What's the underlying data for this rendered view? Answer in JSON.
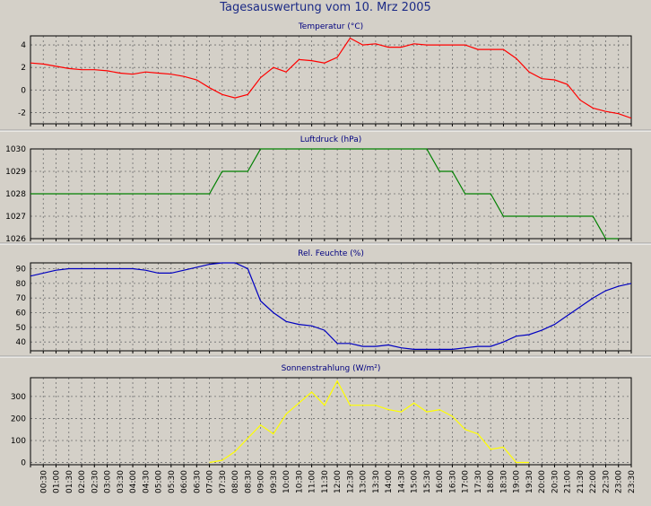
{
  "page": {
    "title": "Tagesauswertung vom 10. Mrz 2005"
  },
  "x_labels": [
    "00:30",
    "01:00",
    "01:30",
    "02:00",
    "02:30",
    "03:00",
    "03:30",
    "04:00",
    "04:30",
    "05:00",
    "05:30",
    "06:00",
    "06:30",
    "07:00",
    "07:30",
    "08:00",
    "08:30",
    "09:00",
    "09:30",
    "10:00",
    "10:30",
    "11:00",
    "11:30",
    "12:00",
    "12:30",
    "13:00",
    "13:30",
    "14:00",
    "14:30",
    "15:00",
    "15:30",
    "16:00",
    "16:30",
    "17:00",
    "17:30",
    "18:00",
    "18:30",
    "19:00",
    "19:30",
    "20:00",
    "20:30",
    "21:00",
    "21:30",
    "22:00",
    "22:30",
    "23:00",
    "23:30"
  ],
  "chart_data": [
    {
      "type": "line",
      "title": "Temperatur (°C)",
      "color": "#ff0000",
      "xlim": [
        0,
        23.5
      ],
      "ylim": [
        -3,
        4.8
      ],
      "yticks": [
        -2,
        0,
        2,
        4
      ],
      "x": [
        0,
        0.5,
        1,
        1.5,
        2,
        2.5,
        3,
        3.5,
        4,
        4.5,
        5,
        5.5,
        6,
        6.5,
        7,
        7.5,
        8,
        8.5,
        9,
        9.5,
        10,
        10.5,
        11,
        11.5,
        12,
        12.5,
        13,
        13.5,
        14,
        14.5,
        15,
        15.5,
        16,
        16.5,
        17,
        17.5,
        18,
        18.5,
        19,
        19.5,
        20,
        20.5,
        21,
        21.5,
        22,
        22.5,
        23,
        23.5
      ],
      "values": [
        2.4,
        2.3,
        2.1,
        1.9,
        1.8,
        1.8,
        1.7,
        1.5,
        1.4,
        1.6,
        1.5,
        1.4,
        1.2,
        0.9,
        0.2,
        -0.4,
        -0.7,
        -0.4,
        1.1,
        2.0,
        1.6,
        2.7,
        2.6,
        2.4,
        2.9,
        4.6,
        4.0,
        4.1,
        3.8,
        3.8,
        4.1,
        4.0,
        4.0,
        4.0,
        4.0,
        3.6,
        3.6,
        3.6,
        2.8,
        1.6,
        1.0,
        0.9,
        0.5,
        -0.9,
        -1.6,
        -1.9,
        -2.1,
        -2.5
      ]
    },
    {
      "type": "line",
      "title": "Luftdruck (hPa)",
      "color": "#008000",
      "xlim": [
        0,
        23.5
      ],
      "ylim": [
        1026,
        1030
      ],
      "yticks": [
        1026,
        1027,
        1028,
        1029,
        1030
      ],
      "x": [
        0,
        7,
        7.5,
        8.5,
        9,
        15.5,
        16,
        16.5,
        17,
        17.5,
        18,
        18.5,
        19,
        19.5,
        20,
        20.5,
        21,
        21.5,
        22,
        22.5,
        23
      ],
      "values": [
        1028,
        1028,
        1029,
        1029,
        1030,
        1030,
        1029,
        1029,
        1028,
        1028,
        1028,
        1027,
        1027,
        1027,
        1027,
        1027,
        1027,
        1027,
        1027,
        1026,
        1026
      ]
    },
    {
      "type": "line",
      "title": "Rel. Feuchte (%)",
      "color": "#0000c0",
      "xlim": [
        0,
        23.5
      ],
      "ylim": [
        34,
        94
      ],
      "yticks": [
        40,
        50,
        60,
        70,
        80,
        90
      ],
      "x": [
        0,
        0.5,
        1,
        1.5,
        2,
        2.5,
        3,
        3.5,
        4,
        4.5,
        5,
        5.5,
        6,
        6.5,
        7,
        7.5,
        8,
        8.5,
        9,
        9.5,
        10,
        10.5,
        11,
        11.5,
        12,
        12.5,
        13,
        13.5,
        14,
        14.5,
        15,
        15.5,
        16,
        16.5,
        17,
        17.5,
        18,
        18.5,
        19,
        19.5,
        20,
        20.5,
        21,
        21.5,
        22,
        22.5,
        23,
        23.5
      ],
      "values": [
        85,
        87,
        89,
        90,
        90,
        90,
        90,
        90,
        90,
        89,
        87,
        87,
        89,
        91,
        93,
        94,
        94,
        90,
        68,
        60,
        54,
        52,
        51,
        48,
        39,
        39,
        37,
        37,
        38,
        36,
        35,
        35,
        35,
        35,
        36,
        37,
        37,
        40,
        44,
        45,
        48,
        52,
        58,
        64,
        70,
        75,
        78,
        80
      ]
    },
    {
      "type": "line",
      "title": "Sonnenstrahlung (W/m²)",
      "color": "#ffff00",
      "xlim": [
        0,
        23.5
      ],
      "ylim": [
        -10,
        385
      ],
      "yticks": [
        0,
        100,
        200,
        300
      ],
      "x": [
        7,
        7.5,
        8,
        8.5,
        9,
        9.5,
        10,
        10.5,
        11,
        11.5,
        12,
        12.5,
        13,
        13.5,
        14,
        14.5,
        15,
        15.5,
        16,
        16.5,
        17,
        17.5,
        18,
        18.5,
        19,
        19.5
      ],
      "values": [
        0,
        10,
        50,
        110,
        170,
        130,
        220,
        270,
        320,
        260,
        370,
        260,
        260,
        260,
        240,
        230,
        270,
        230,
        240,
        210,
        150,
        130,
        60,
        70,
        0,
        0
      ]
    }
  ]
}
